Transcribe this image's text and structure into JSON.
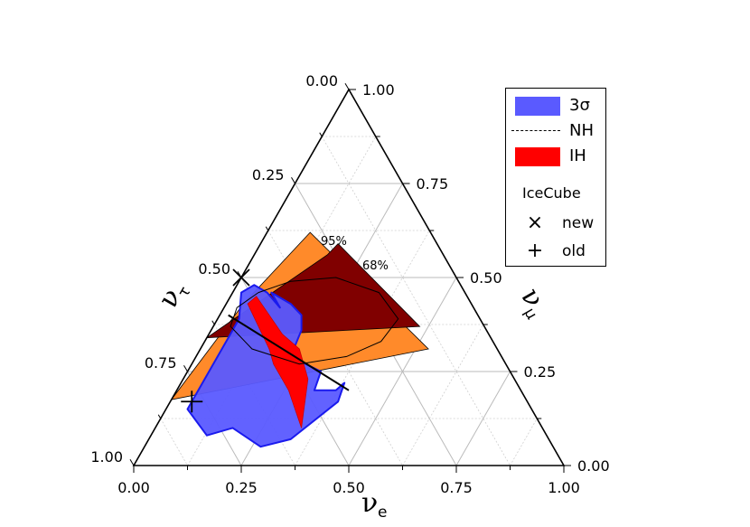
{
  "chart_data": {
    "type": "ternary",
    "axes": {
      "bottom": {
        "name": "ν",
        "sub": "e",
        "ticks": [
          "0.00",
          "0.25",
          "0.50",
          "0.75",
          "1.00"
        ],
        "range": [
          0,
          1
        ]
      },
      "right": {
        "name": "ν",
        "sub": "μ",
        "ticks": [
          "0.00",
          "0.25",
          "0.50",
          "0.75",
          "1.00"
        ],
        "range": [
          0,
          1
        ]
      },
      "left": {
        "name": "ν",
        "sub": "τ",
        "ticks": [
          "0.00",
          "0.25",
          "0.50",
          "0.75",
          "1.00"
        ],
        "range": [
          0,
          1
        ]
      }
    },
    "colors": {
      "sigma3": "#5a5aff",
      "sigma3_edge": "#1a1aee",
      "ih": "#ff0000",
      "band95": "#ff8a2a",
      "band68": "#800000"
    },
    "regions": {
      "band95": {
        "label": "95%",
        "points": [
          [
            0.1,
            0.62
          ],
          [
            0.04,
            0.43
          ],
          [
            0.0,
            0.175
          ],
          [
            0.53,
            0.31
          ]
        ]
      },
      "band68": {
        "label": "68%",
        "points": [
          [
            0.18,
            0.59
          ],
          [
            0.17,
            0.56
          ],
          [
            0.0,
            0.34
          ],
          [
            0.48,
            0.37
          ]
        ]
      },
      "sigma3": {
        "points": [
          [
            0.08,
            0.46
          ],
          [
            0.13,
            0.42
          ],
          [
            0.09,
            0.46
          ],
          [
            0.15,
            0.43
          ],
          [
            0.19,
            0.4
          ],
          [
            0.21,
            0.36
          ],
          [
            0.22,
            0.29
          ],
          [
            0.31,
            0.25
          ],
          [
            0.32,
            0.2
          ],
          [
            0.37,
            0.2
          ],
          [
            0.38,
            0.22
          ],
          [
            0.39,
            0.17
          ],
          [
            0.33,
            0.07
          ],
          [
            0.27,
            0.05
          ],
          [
            0.18,
            0.1
          ],
          [
            0.13,
            0.08
          ],
          [
            0.05,
            0.15
          ],
          [
            0.05,
            0.25
          ],
          [
            0.05,
            0.39
          ],
          [
            0.02,
            0.46
          ],
          [
            0.04,
            0.48
          ]
        ]
      },
      "ih": {
        "points": [
          [
            0.06,
            0.45
          ],
          [
            0.17,
            0.35
          ],
          [
            0.23,
            0.31
          ],
          [
            0.29,
            0.23
          ],
          [
            0.34,
            0.1
          ],
          [
            0.26,
            0.2
          ],
          [
            0.19,
            0.27
          ],
          [
            0.16,
            0.31
          ],
          [
            0.05,
            0.43
          ]
        ]
      }
    },
    "nh_line": {
      "points": [
        [
          0.02,
          0.4
        ],
        [
          0.4,
          0.2
        ]
      ]
    },
    "nh_dashed_loop": {
      "points": [
        [
          0.06,
          0.46
        ],
        [
          0.12,
          0.49
        ],
        [
          0.22,
          0.5
        ],
        [
          0.34,
          0.46
        ],
        [
          0.42,
          0.39
        ],
        [
          0.41,
          0.33
        ],
        [
          0.35,
          0.29
        ],
        [
          0.25,
          0.27
        ],
        [
          0.12,
          0.31
        ],
        [
          0.04,
          0.37
        ],
        [
          0.03,
          0.42
        ],
        [
          0.06,
          0.46
        ]
      ]
    },
    "icecube": {
      "new": {
        "marker": "×",
        "point": [
          0.0,
          0.5
        ]
      },
      "old": {
        "marker": "+",
        "point": [
          0.05,
          0.17
        ]
      }
    },
    "legend": {
      "items": [
        {
          "kind": "swatch",
          "label": "3σ",
          "color": "#5a5aff"
        },
        {
          "kind": "line",
          "label": "NH"
        },
        {
          "kind": "swatch",
          "label": "IH",
          "color": "#ff0000"
        }
      ],
      "icecube_title": "IceCube",
      "markers": [
        {
          "symbol": "×",
          "label": "new"
        },
        {
          "symbol": "+",
          "label": "old"
        }
      ]
    }
  }
}
